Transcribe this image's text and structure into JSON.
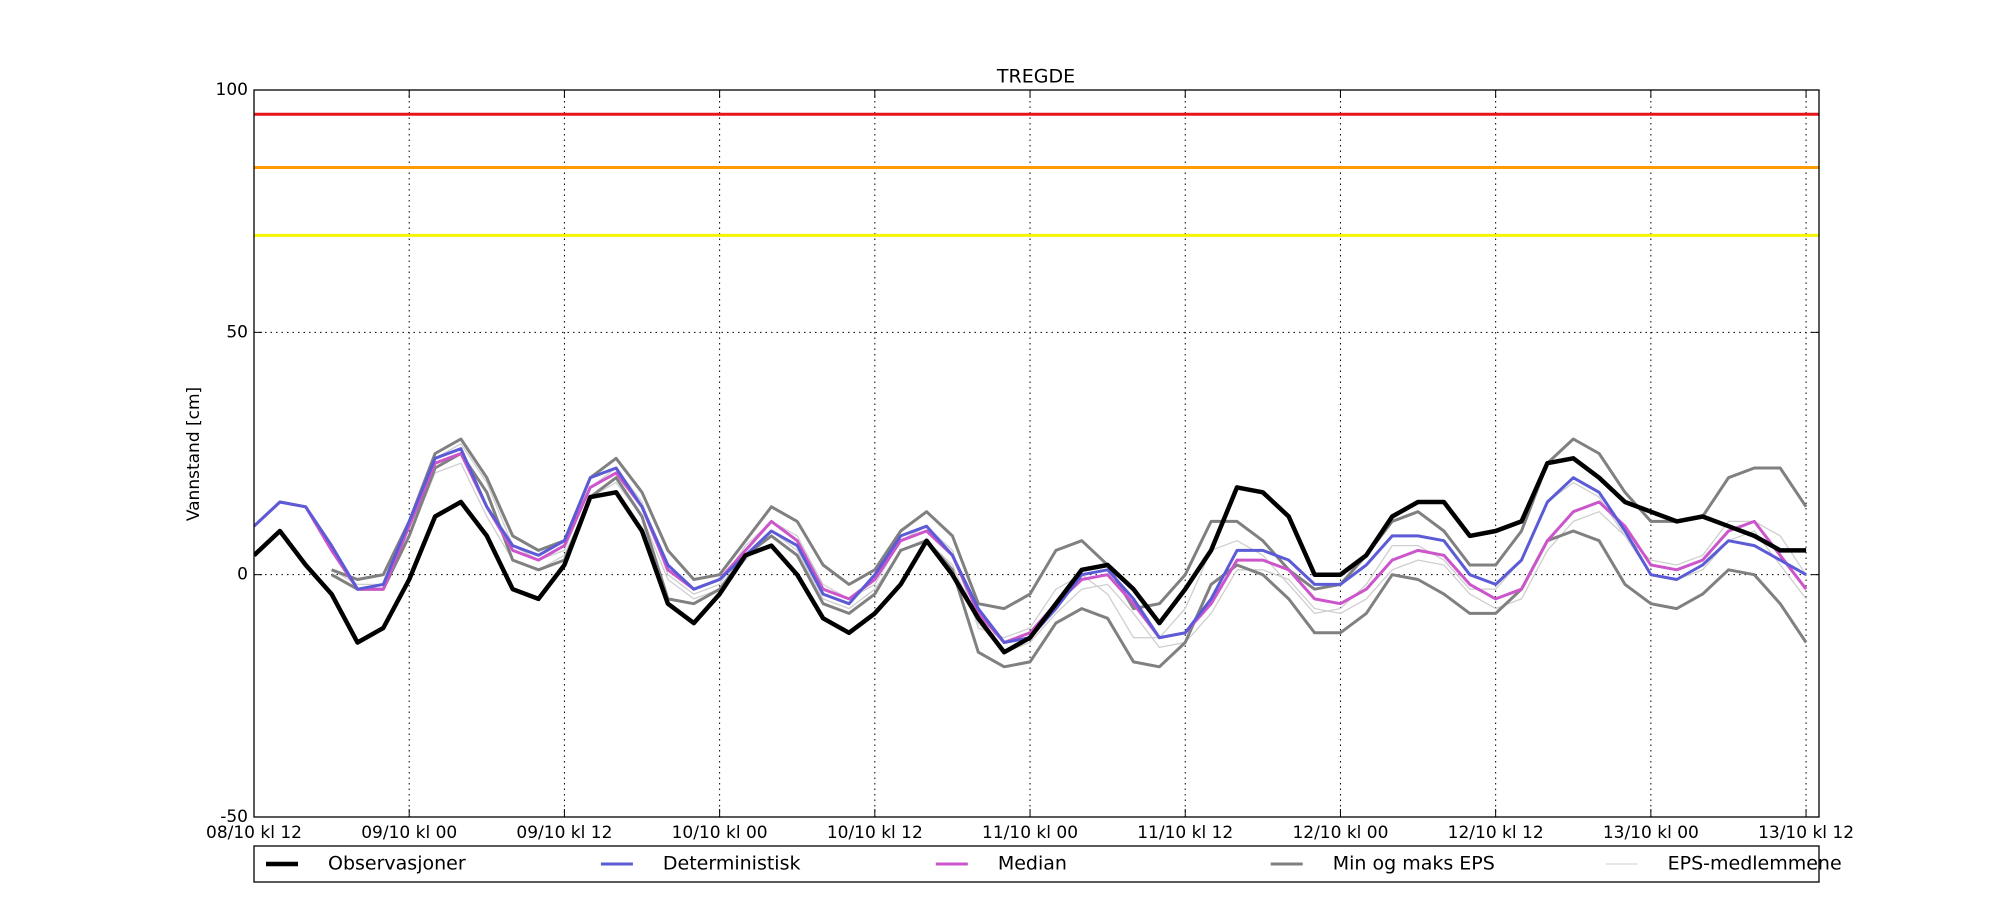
{
  "chart_data": {
    "type": "line",
    "title": "TREGDE",
    "y_label": "Vannstand [cm]",
    "x": [
      0,
      2,
      4,
      6,
      8,
      10,
      12,
      14,
      16,
      18,
      20,
      22,
      24,
      26,
      28,
      30,
      32,
      34,
      36,
      38,
      40,
      42,
      44,
      46,
      48,
      50,
      52,
      54,
      56,
      58,
      60,
      62,
      64,
      66,
      68,
      70,
      72,
      74,
      76,
      78,
      80,
      82,
      84,
      86,
      88,
      90,
      92,
      94,
      96,
      98,
      100,
      102,
      104,
      106,
      108,
      110,
      112,
      114,
      116,
      118,
      120
    ],
    "xlim": [
      0,
      121
    ],
    "xticks": [
      {
        "value": 0,
        "label": "08/10 kl 12"
      },
      {
        "value": 12,
        "label": "09/10 kl 00"
      },
      {
        "value": 24,
        "label": "09/10 kl 12"
      },
      {
        "value": 36,
        "label": "10/10 kl 00"
      },
      {
        "value": 48,
        "label": "10/10 kl 12"
      },
      {
        "value": 60,
        "label": "11/10 kl 00"
      },
      {
        "value": 72,
        "label": "11/10 kl 12"
      },
      {
        "value": 84,
        "label": "12/10 kl 00"
      },
      {
        "value": 96,
        "label": "12/10 kl 12"
      },
      {
        "value": 108,
        "label": "13/10 kl 00"
      },
      {
        "value": 120,
        "label": "13/10 kl 12"
      }
    ],
    "ylim": [
      -50,
      100
    ],
    "yticks": [
      -50,
      0,
      50,
      100
    ],
    "grid": true,
    "legend": "bottom",
    "reference_lines": [
      {
        "value": 95,
        "color": "#e8141c"
      },
      {
        "value": 84,
        "color": "#ff9c00"
      },
      {
        "value": 70,
        "color": "#f5f500"
      }
    ],
    "series": [
      {
        "name": "Observasjoner",
        "color": "#000000",
        "values": [
          4,
          9,
          2,
          -4,
          -14,
          -11,
          -1,
          12,
          15,
          8,
          -3,
          -5,
          2,
          16,
          17,
          9,
          -6,
          -10,
          -4,
          4,
          6,
          0,
          -9,
          -12,
          -8,
          -2,
          7,
          0,
          -9,
          -16,
          -13,
          -6,
          1,
          2,
          -3,
          -10,
          -3,
          5,
          18,
          17,
          12,
          0,
          0,
          4,
          12,
          15,
          15,
          8,
          9,
          11,
          23,
          24,
          20,
          15,
          13,
          11,
          12,
          10,
          8,
          5,
          5
        ]
      },
      {
        "name": "Deterministisk",
        "color": "#5b5bd6",
        "values": [
          10,
          15,
          14,
          6,
          -3,
          -2,
          11,
          24,
          26,
          14,
          6,
          4,
          7,
          20,
          22,
          14,
          2,
          -3,
          -1,
          4,
          9,
          6,
          -4,
          -6,
          0,
          8,
          10,
          4,
          -7,
          -14,
          -13,
          -7,
          0,
          1,
          -5,
          -13,
          -12,
          -5,
          5,
          5,
          3,
          -2,
          -2,
          2,
          8,
          8,
          7,
          0,
          -2,
          3,
          15,
          20,
          17,
          9,
          0,
          -1,
          2,
          7,
          6,
          3,
          0
        ]
      },
      {
        "name": "Median",
        "color": "#cc55cc",
        "values": [
          10,
          15,
          14,
          5,
          -3,
          -3,
          10,
          23,
          25,
          14,
          5,
          3,
          6,
          18,
          21,
          14,
          1,
          -3,
          -1,
          5,
          11,
          7,
          -3,
          -5,
          -1,
          7,
          9,
          4,
          -8,
          -14,
          -12,
          -6,
          -1,
          0,
          -6,
          -13,
          -12,
          -6,
          3,
          3,
          1,
          -5,
          -6,
          -3,
          3,
          5,
          4,
          -2,
          -5,
          -3,
          7,
          13,
          15,
          10,
          2,
          1,
          3,
          9,
          11,
          4,
          -3
        ]
      },
      {
        "name": "Min og maks EPS",
        "color": "#808080",
        "min": [
          null,
          null,
          null,
          0,
          -3,
          -3,
          8,
          22,
          25,
          17,
          3,
          1,
          3,
          16,
          20,
          12,
          -5,
          -6,
          -3,
          4,
          8,
          4,
          -6,
          -8,
          -4,
          5,
          7,
          1,
          -16,
          -19,
          -18,
          -10,
          -7,
          -9,
          -18,
          -19,
          -14,
          -2,
          2,
          0,
          -5,
          -12,
          -12,
          -8,
          0,
          -1,
          -4,
          -8,
          -8,
          -3,
          7,
          9,
          7,
          -2,
          -6,
          -7,
          -4,
          1,
          0,
          -6,
          -14
        ],
        "max": [
          null,
          null,
          null,
          1,
          -1,
          0,
          11,
          25,
          28,
          20,
          8,
          5,
          7,
          20,
          24,
          17,
          5,
          -1,
          0,
          7,
          14,
          11,
          2,
          -2,
          1,
          9,
          13,
          8,
          -6,
          -7,
          -4,
          5,
          7,
          2,
          -7,
          -6,
          0,
          11,
          11,
          7,
          1,
          -3,
          -2,
          4,
          11,
          13,
          9,
          2,
          2,
          9,
          23,
          28,
          25,
          17,
          11,
          11,
          12,
          20,
          22,
          22,
          14
        ]
      },
      {
        "name": "EPS-medlemmene",
        "color": "#cfcfcf",
        "members": [
          [
            null,
            null,
            null,
            null,
            null,
            null,
            8,
            21,
            23,
            12,
            3,
            1,
            4,
            16,
            19,
            12,
            -1,
            -5,
            -3,
            3,
            9,
            5,
            -5,
            -7,
            -3,
            5,
            7,
            2,
            -10,
            -16,
            -14,
            -8,
            -3,
            -2,
            -8,
            -15,
            -14,
            -8,
            1,
            1,
            -1,
            -7,
            -8,
            -5,
            1,
            3,
            2,
            -4,
            -7,
            -5,
            5,
            11,
            13,
            8,
            0,
            -1,
            1,
            7,
            9,
            2,
            -5
          ],
          [
            null,
            null,
            null,
            1,
            -2,
            -2,
            10,
            24,
            27,
            19,
            6,
            3,
            5,
            18,
            22,
            15,
            0,
            -4,
            -2,
            6,
            11,
            8,
            -2,
            -5,
            -2,
            7,
            10,
            5,
            -11,
            -13,
            -11,
            -3,
            0,
            -4,
            -13,
            -13,
            -7,
            5,
            7,
            4,
            -2,
            -8,
            -7,
            -2,
            6,
            6,
            3,
            -3,
            -3,
            3,
            15,
            19,
            16,
            8,
            3,
            2,
            4,
            11,
            11,
            8,
            0
          ]
        ]
      }
    ]
  }
}
